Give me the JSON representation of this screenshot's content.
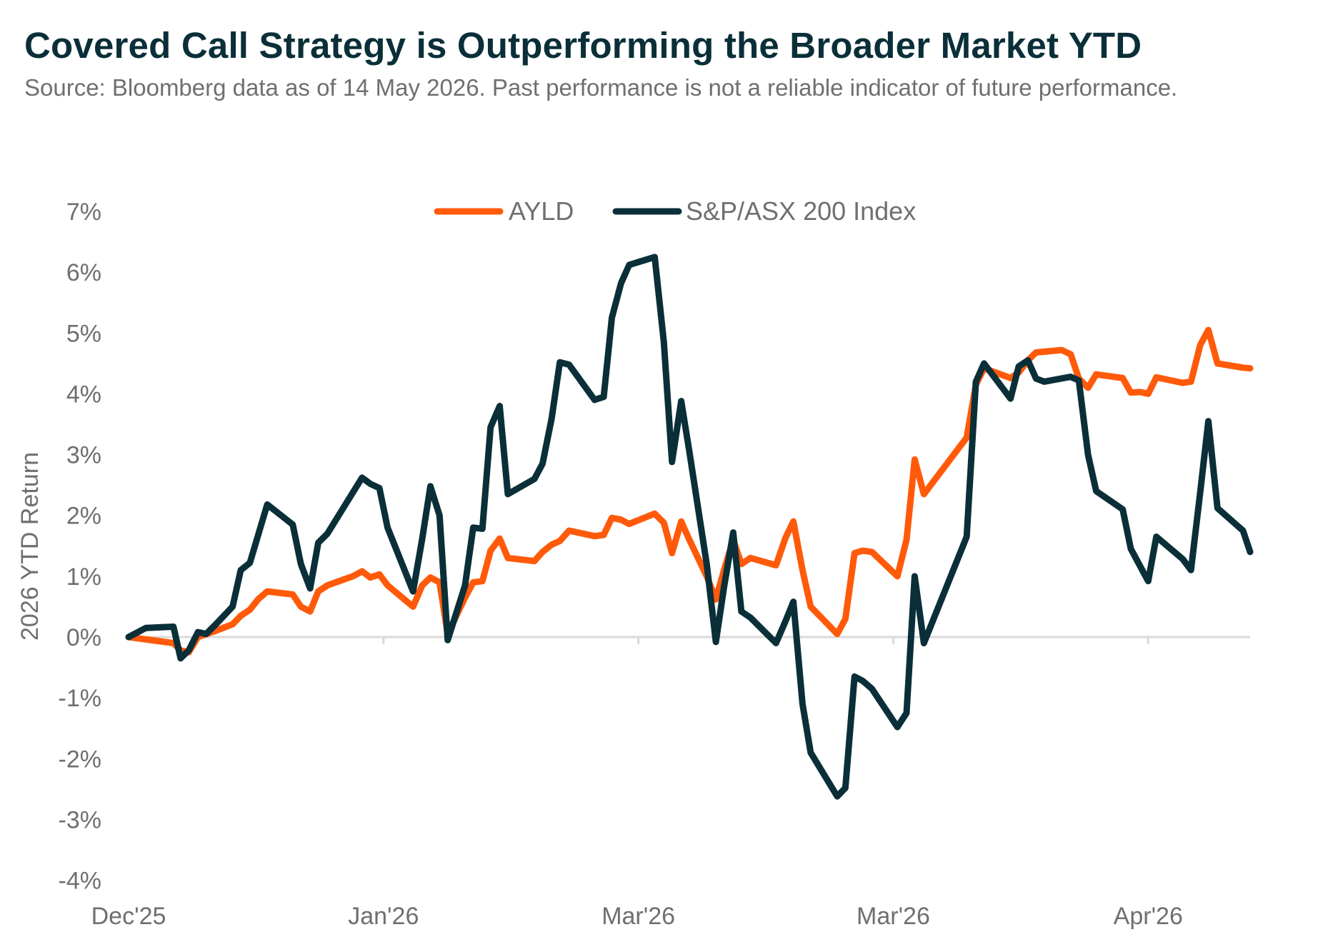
{
  "header": {
    "title": "Covered Call Strategy is Outperforming the Broader Market YTD",
    "subtitle": "Source: Bloomberg data as of 14 May 2026. Past performance is not a reliable indicator of future performance."
  },
  "colors": {
    "ayld": "#ff5a0a",
    "index": "#0a2f38",
    "axis": "#d9d9d9",
    "text": "#6f6f6f"
  },
  "chart_data": {
    "type": "line",
    "ylabel": "2026 YTD Return",
    "ylim": [
      -4,
      7
    ],
    "yticks": [
      7,
      6,
      5,
      4,
      3,
      2,
      1,
      0,
      -1,
      -2,
      -3,
      -4
    ],
    "ytick_labels": [
      "7%",
      "6%",
      "5%",
      "4%",
      "3%",
      "2%",
      "1%",
      "0%",
      "-1%",
      "-2%",
      "-3%",
      "-4%"
    ],
    "xlim": [
      0,
      110
    ],
    "xticks": [
      {
        "label": "Dec'25",
        "x": 0
      },
      {
        "label": "Jan'26",
        "x": 25
      },
      {
        "label": "Mar'26",
        "x": 50
      },
      {
        "label": "Mar'26",
        "x": 75
      },
      {
        "label": "Apr'26",
        "x": 100
      }
    ],
    "legend_position": "top-center",
    "grid": false,
    "series": [
      {
        "name": "AYLD",
        "color": "#ff5a0a",
        "points": [
          [
            0,
            0
          ],
          [
            4.4,
            -0.1
          ],
          [
            5.1,
            -0.22
          ],
          [
            5.9,
            -0.25
          ],
          [
            6.8,
            0
          ],
          [
            8.5,
            0.1
          ],
          [
            10.2,
            0.21
          ],
          [
            11.0,
            0.35
          ],
          [
            11.9,
            0.45
          ],
          [
            12.7,
            0.62
          ],
          [
            13.6,
            0.75
          ],
          [
            16.1,
            0.7
          ],
          [
            16.9,
            0.5
          ],
          [
            17.8,
            0.42
          ],
          [
            18.6,
            0.75
          ],
          [
            19.5,
            0.85
          ],
          [
            22.0,
            1.0
          ],
          [
            22.9,
            1.08
          ],
          [
            23.7,
            0.98
          ],
          [
            24.6,
            1.03
          ],
          [
            25.4,
            0.85
          ],
          [
            27.9,
            0.5
          ],
          [
            28.8,
            0.85
          ],
          [
            29.6,
            0.98
          ],
          [
            30.5,
            0.9
          ],
          [
            31.3,
            0.05
          ],
          [
            33.0,
            0.65
          ],
          [
            33.8,
            0.9
          ],
          [
            34.7,
            0.92
          ],
          [
            35.5,
            1.42
          ],
          [
            36.4,
            1.62
          ],
          [
            37.2,
            1.3
          ],
          [
            39.8,
            1.25
          ],
          [
            40.6,
            1.4
          ],
          [
            41.5,
            1.52
          ],
          [
            42.3,
            1.58
          ],
          [
            43.2,
            1.75
          ],
          [
            45.7,
            1.66
          ],
          [
            46.6,
            1.68
          ],
          [
            47.4,
            1.96
          ],
          [
            48.3,
            1.93
          ],
          [
            49.1,
            1.86
          ],
          [
            51.6,
            2.03
          ],
          [
            52.5,
            1.88
          ],
          [
            53.3,
            1.38
          ],
          [
            54.2,
            1.9
          ],
          [
            55.0,
            1.6
          ],
          [
            56.7,
            1.0
          ],
          [
            57.6,
            0.62
          ],
          [
            58.4,
            1.1
          ],
          [
            59.3,
            1.6
          ],
          [
            60.1,
            1.2
          ],
          [
            61.0,
            1.3
          ],
          [
            63.5,
            1.18
          ],
          [
            64.4,
            1.62
          ],
          [
            65.2,
            1.9
          ],
          [
            66.1,
            1.1
          ],
          [
            66.9,
            0.5
          ],
          [
            69.5,
            0.05
          ],
          [
            70.3,
            0.3
          ],
          [
            71.2,
            1.38
          ],
          [
            72.0,
            1.42
          ],
          [
            72.9,
            1.4
          ],
          [
            75.4,
            1.0
          ],
          [
            76.3,
            1.6
          ],
          [
            77.1,
            2.92
          ],
          [
            78.0,
            2.35
          ],
          [
            82.2,
            3.28
          ],
          [
            83.1,
            4.15
          ],
          [
            83.9,
            4.42
          ],
          [
            86.5,
            4.26
          ],
          [
            87.3,
            4.35
          ],
          [
            88.2,
            4.55
          ],
          [
            89.0,
            4.68
          ],
          [
            91.5,
            4.72
          ],
          [
            92.4,
            4.65
          ],
          [
            93.2,
            4.25
          ],
          [
            94.1,
            4.1
          ],
          [
            94.9,
            4.32
          ],
          [
            97.5,
            4.26
          ],
          [
            98.3,
            4.02
          ],
          [
            99.2,
            4.03
          ],
          [
            100.0,
            4.0
          ],
          [
            100.8,
            4.27
          ],
          [
            103.4,
            4.18
          ],
          [
            104.2,
            4.2
          ],
          [
            105.1,
            4.8
          ],
          [
            105.9,
            5.05
          ],
          [
            106.8,
            4.5
          ],
          [
            109.3,
            4.43
          ],
          [
            110.0,
            4.42
          ]
        ]
      },
      {
        "name": "S&P/ASX 200 Index",
        "color": "#0a2f38",
        "points": [
          [
            0,
            0
          ],
          [
            1.7,
            0.15
          ],
          [
            4.4,
            0.17
          ],
          [
            5.1,
            -0.35
          ],
          [
            5.9,
            -0.22
          ],
          [
            6.8,
            0.08
          ],
          [
            7.6,
            0.05
          ],
          [
            8.5,
            0.2
          ],
          [
            10.2,
            0.5
          ],
          [
            11.0,
            1.1
          ],
          [
            11.9,
            1.22
          ],
          [
            13.6,
            2.18
          ],
          [
            16.1,
            1.85
          ],
          [
            16.9,
            1.2
          ],
          [
            17.8,
            0.8
          ],
          [
            18.6,
            1.55
          ],
          [
            19.5,
            1.7
          ],
          [
            22.9,
            2.62
          ],
          [
            23.7,
            2.52
          ],
          [
            24.6,
            2.45
          ],
          [
            25.4,
            1.8
          ],
          [
            27.9,
            0.75
          ],
          [
            28.8,
            1.62
          ],
          [
            29.6,
            2.48
          ],
          [
            30.5,
            2.0
          ],
          [
            31.3,
            -0.05
          ],
          [
            33.0,
            0.85
          ],
          [
            33.8,
            1.8
          ],
          [
            34.7,
            1.78
          ],
          [
            35.5,
            3.45
          ],
          [
            36.4,
            3.8
          ],
          [
            37.2,
            2.35
          ],
          [
            39.8,
            2.6
          ],
          [
            40.6,
            2.85
          ],
          [
            41.5,
            3.6
          ],
          [
            42.3,
            4.52
          ],
          [
            43.2,
            4.48
          ],
          [
            45.7,
            3.9
          ],
          [
            46.6,
            3.95
          ],
          [
            47.4,
            5.25
          ],
          [
            48.3,
            5.82
          ],
          [
            49.1,
            6.12
          ],
          [
            51.6,
            6.25
          ],
          [
            52.5,
            4.85
          ],
          [
            53.3,
            2.88
          ],
          [
            54.2,
            3.88
          ],
          [
            55.0,
            3.05
          ],
          [
            56.7,
            1.2
          ],
          [
            57.6,
            -0.08
          ],
          [
            58.4,
            0.82
          ],
          [
            59.3,
            1.72
          ],
          [
            60.1,
            0.42
          ],
          [
            61.0,
            0.32
          ],
          [
            63.5,
            -0.1
          ],
          [
            64.4,
            0.25
          ],
          [
            65.2,
            0.58
          ],
          [
            66.1,
            -1.1
          ],
          [
            66.9,
            -1.9
          ],
          [
            69.5,
            -2.62
          ],
          [
            70.3,
            -2.48
          ],
          [
            71.2,
            -0.65
          ],
          [
            72.0,
            -0.72
          ],
          [
            72.9,
            -0.85
          ],
          [
            75.4,
            -1.48
          ],
          [
            76.3,
            -1.25
          ],
          [
            77.1,
            1.0
          ],
          [
            78.0,
            -0.1
          ],
          [
            82.2,
            1.65
          ],
          [
            83.1,
            4.2
          ],
          [
            83.9,
            4.5
          ],
          [
            86.5,
            3.92
          ],
          [
            87.3,
            4.45
          ],
          [
            88.2,
            4.55
          ],
          [
            89.0,
            4.25
          ],
          [
            89.8,
            4.2
          ],
          [
            92.4,
            4.28
          ],
          [
            93.2,
            4.22
          ],
          [
            94.1,
            3.0
          ],
          [
            94.9,
            2.4
          ],
          [
            97.5,
            2.1
          ],
          [
            98.3,
            1.45
          ],
          [
            100.0,
            0.92
          ],
          [
            100.8,
            1.65
          ],
          [
            103.4,
            1.28
          ],
          [
            104.2,
            1.1
          ],
          [
            105.1,
            2.38
          ],
          [
            105.9,
            3.55
          ],
          [
            106.8,
            2.12
          ],
          [
            109.3,
            1.75
          ],
          [
            110.0,
            1.4
          ]
        ]
      }
    ]
  }
}
